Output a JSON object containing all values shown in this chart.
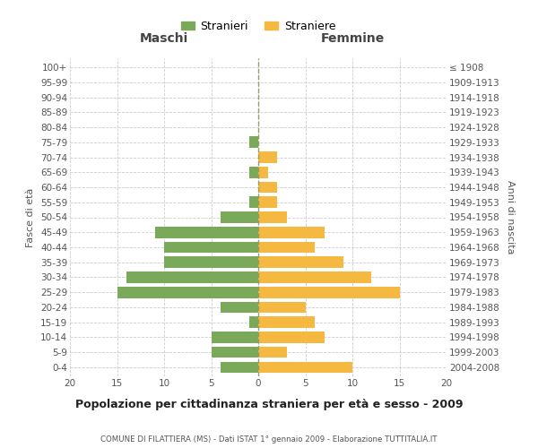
{
  "age_groups": [
    "0-4",
    "5-9",
    "10-14",
    "15-19",
    "20-24",
    "25-29",
    "30-34",
    "35-39",
    "40-44",
    "45-49",
    "50-54",
    "55-59",
    "60-64",
    "65-69",
    "70-74",
    "75-79",
    "80-84",
    "85-89",
    "90-94",
    "95-99",
    "100+"
  ],
  "birth_years": [
    "2004-2008",
    "1999-2003",
    "1994-1998",
    "1989-1993",
    "1984-1988",
    "1979-1983",
    "1974-1978",
    "1969-1973",
    "1964-1968",
    "1959-1963",
    "1954-1958",
    "1949-1953",
    "1944-1948",
    "1939-1943",
    "1934-1938",
    "1929-1933",
    "1924-1928",
    "1919-1923",
    "1914-1918",
    "1909-1913",
    "≤ 1908"
  ],
  "males": [
    4,
    5,
    5,
    1,
    4,
    15,
    14,
    10,
    10,
    11,
    4,
    1,
    0,
    1,
    0,
    1,
    0,
    0,
    0,
    0,
    0
  ],
  "females": [
    10,
    3,
    7,
    6,
    5,
    15,
    12,
    9,
    6,
    7,
    3,
    2,
    2,
    1,
    2,
    0,
    0,
    0,
    0,
    0,
    0
  ],
  "male_color": "#7aaa59",
  "female_color": "#f5b942",
  "background_color": "#ffffff",
  "grid_color": "#cccccc",
  "title": "Popolazione per cittadinanza straniera per età e sesso - 2009",
  "subtitle": "COMUNE DI FILATTIERA (MS) - Dati ISTAT 1° gennaio 2009 - Elaborazione TUTTITALIA.IT",
  "xlabel_left": "Maschi",
  "xlabel_right": "Femmine",
  "ylabel_left": "Fasce di età",
  "ylabel_right": "Anni di nascita",
  "legend_male": "Stranieri",
  "legend_female": "Straniere",
  "xlim": 20
}
